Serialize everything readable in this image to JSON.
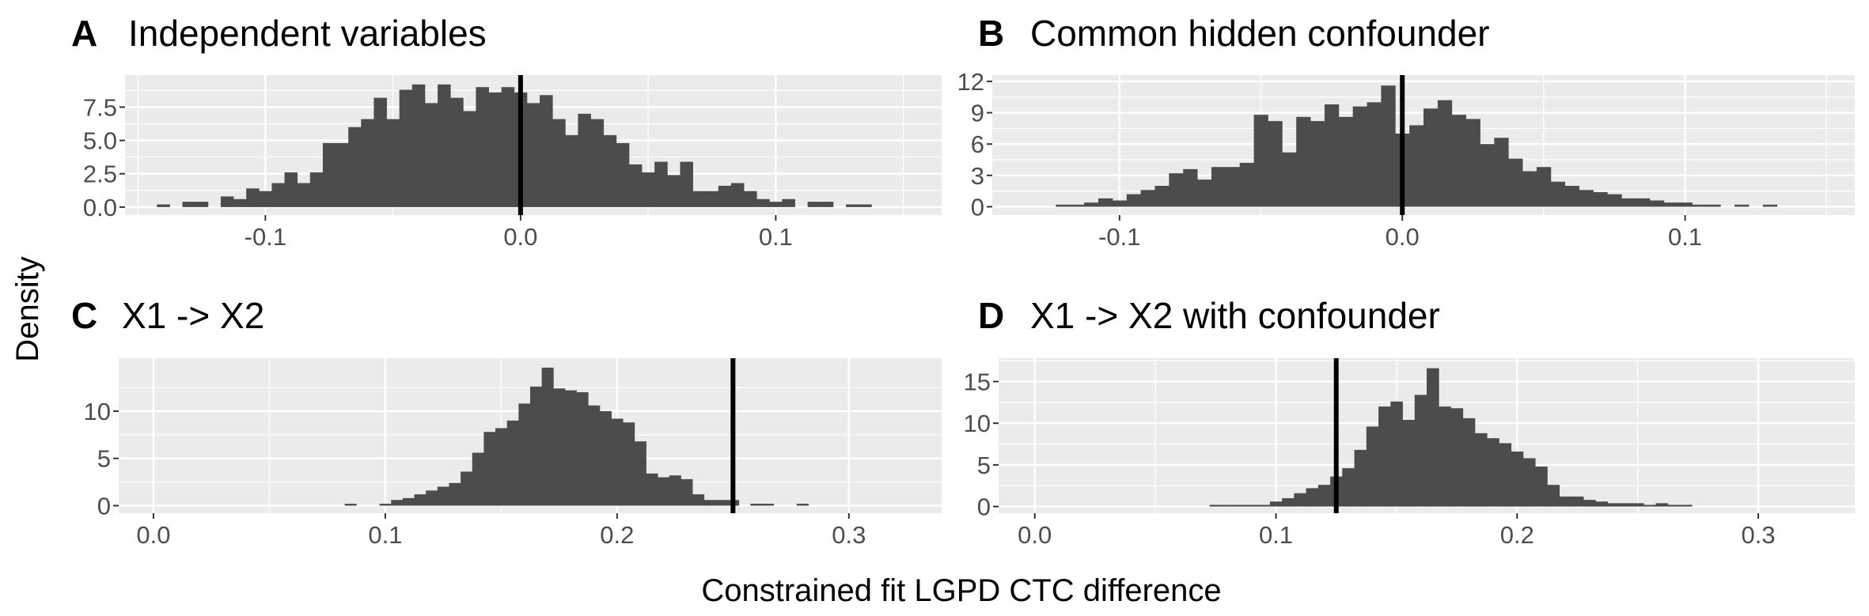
{
  "figure": {
    "ylabel": "Density",
    "xlabel": "Constrained fit LGPD CTC difference"
  },
  "chart_data": [
    {
      "type": "bar",
      "panel": "A",
      "title": "Independent variables",
      "bin_width": 0.005,
      "bins_start": -0.1425,
      "xlim": [
        -0.155,
        0.165
      ],
      "ylim": [
        -0.6,
        9.9
      ],
      "xticks": [
        -0.1,
        0.0,
        0.1
      ],
      "xtick_labels": [
        "-0.1",
        "0.0",
        "0.1"
      ],
      "yticks": [
        0,
        2.5,
        5.0,
        7.5
      ],
      "ytick_labels": [
        "0.0",
        "2.5",
        "5.0",
        "7.5"
      ],
      "reference_line": 0.0,
      "values": [
        0.2,
        0,
        0.4,
        0.4,
        0,
        0.8,
        0.6,
        1.4,
        1.2,
        1.8,
        2.6,
        1.8,
        2.6,
        4.8,
        4.8,
        6.0,
        6.6,
        8.2,
        6.6,
        8.8,
        9.2,
        7.8,
        9.2,
        8.2,
        7.2,
        9.0,
        8.6,
        9.0,
        8.6,
        7.8,
        8.4,
        6.6,
        5.4,
        7.0,
        6.6,
        5.4,
        4.8,
        3.2,
        2.6,
        3.4,
        2.4,
        3.4,
        1.2,
        1.2,
        1.6,
        1.8,
        1.2,
        0.6,
        0.4,
        0.6,
        0,
        0.4,
        0.4,
        0,
        0.2,
        0.2
      ],
      "grid": true
    },
    {
      "type": "bar",
      "panel": "B",
      "title": "Common hidden confounder",
      "bin_width": 0.005,
      "bins_start": -0.1225,
      "xlim": [
        -0.145,
        0.16
      ],
      "ylim": [
        -0.8,
        12.6
      ],
      "xticks": [
        -0.1,
        0.0,
        0.1
      ],
      "xtick_labels": [
        "-0.1",
        "0.0",
        "0.1"
      ],
      "yticks": [
        0,
        3,
        6,
        9,
        12
      ],
      "ytick_labels": [
        "0",
        "3",
        "6",
        "9",
        "12"
      ],
      "reference_line": 0.0,
      "values": [
        0.2,
        0.2,
        0.4,
        0.8,
        0.6,
        1.2,
        1.6,
        2.0,
        3.2,
        3.6,
        2.6,
        3.8,
        3.8,
        4.2,
        8.8,
        8.2,
        5.2,
        8.6,
        8.2,
        9.8,
        8.6,
        9.6,
        10.0,
        11.6,
        7.0,
        7.8,
        9.4,
        10.2,
        8.8,
        8.4,
        6.0,
        6.6,
        4.6,
        3.4,
        3.8,
        2.4,
        2.0,
        1.6,
        1.4,
        1.2,
        0.8,
        0.8,
        0.6,
        0.4,
        0.4,
        0.2,
        0.2,
        0,
        0.2,
        0,
        0.2
      ]
    },
    {
      "type": "bar",
      "panel": "C",
      "title": "X1 -> X2",
      "bin_width": 0.005,
      "bins_start": 0.0825,
      "xlim": [
        -0.015,
        0.34
      ],
      "ylim": [
        -0.8,
        15.6
      ],
      "xticks": [
        0.0,
        0.1,
        0.2,
        0.3
      ],
      "xtick_labels": [
        "0.0",
        "0.1",
        "0.2",
        "0.3"
      ],
      "yticks": [
        0,
        5,
        10
      ],
      "ytick_labels": [
        "0",
        "5",
        "10"
      ],
      "reference_line": 0.25,
      "values": [
        0.2,
        0,
        0,
        0.2,
        0.6,
        0.8,
        1.2,
        1.6,
        2.0,
        2.4,
        3.6,
        5.6,
        7.8,
        8.2,
        9.0,
        10.8,
        12.6,
        14.6,
        12.4,
        12.2,
        12.0,
        10.6,
        10.0,
        9.2,
        8.8,
        6.8,
        3.4,
        3.0,
        3.2,
        2.8,
        1.2,
        0.6,
        0.6,
        0.6,
        0,
        0.2,
        0.2,
        0,
        0,
        0.2
      ]
    },
    {
      "type": "bar",
      "panel": "D",
      "title": "X1 -> X2 with confounder",
      "bin_width": 0.005,
      "bins_start": 0.0725,
      "xlim": [
        -0.015,
        0.34
      ],
      "ylim": [
        -0.8,
        17.8
      ],
      "xticks": [
        0.0,
        0.1,
        0.2,
        0.3
      ],
      "xtick_labels": [
        "0.0",
        "0.1",
        "0.2",
        "0.3"
      ],
      "yticks": [
        0,
        5,
        10,
        15
      ],
      "ytick_labels": [
        "0",
        "5",
        "10",
        "15"
      ],
      "reference_line": 0.125,
      "values": [
        0.2,
        0.2,
        0.2,
        0.2,
        0.2,
        0.6,
        1.0,
        1.6,
        2.2,
        2.6,
        3.6,
        4.6,
        6.8,
        9.6,
        12.0,
        12.6,
        10.4,
        13.4,
        16.6,
        12.0,
        11.8,
        10.6,
        8.8,
        8.2,
        7.6,
        6.6,
        5.8,
        4.8,
        2.6,
        1.2,
        1.2,
        0.8,
        0.6,
        0.4,
        0.4,
        0.4,
        0.2,
        0.4,
        0.2,
        0.2
      ]
    }
  ]
}
